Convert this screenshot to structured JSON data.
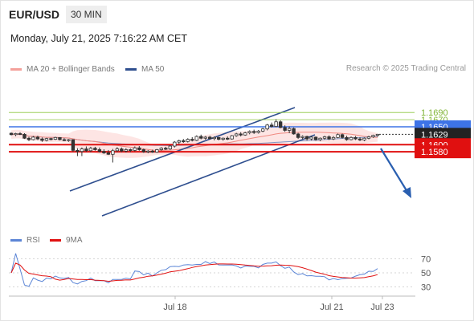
{
  "header": {
    "symbol": "EUR/USD",
    "timeframe": "30 MIN",
    "datetime": "Monday, July 21, 2025 7:16:22 AM CET"
  },
  "legend": {
    "main": [
      {
        "label": "MA 20 + Bollinger Bands",
        "color": "#f4a09a"
      },
      {
        "label": "MA 50",
        "color": "#2f4f8f"
      }
    ],
    "indicator": [
      {
        "label": "RSI",
        "color": "#5b85d6"
      },
      {
        "label": "9MA",
        "color": "#e01010"
      }
    ]
  },
  "credit": "Research © 2025 Trading Central",
  "levels": [
    {
      "value": "1.1690",
      "kind": "target-line",
      "color": "#8cc63f"
    },
    {
      "value": "1.1670",
      "kind": "target-line",
      "color": "#8cc63f"
    },
    {
      "value": "1.1650",
      "kind": "pivot-line",
      "color": "#3d73e6"
    },
    {
      "value": "1.1629",
      "kind": "last-price",
      "color": "#222222"
    },
    {
      "value": "1.1600",
      "kind": "support-line",
      "color": "#e01010"
    },
    {
      "value": "1.1580",
      "kind": "support-line",
      "color": "#e01010"
    }
  ],
  "rsi_axis": [
    "70",
    "50",
    "30"
  ],
  "x_axis": [
    "Jul 18",
    "Jul 21",
    "Jul 23"
  ],
  "chart_data": {
    "type": "candlestick",
    "price_range": [
      1.1538,
      1.1706
    ],
    "candles": [
      [
        1.1632,
        1.1634,
        1.1626,
        1.1628
      ],
      [
        1.1628,
        1.1633,
        1.1624,
        1.1631
      ],
      [
        1.1631,
        1.1635,
        1.1627,
        1.1629
      ],
      [
        1.1629,
        1.1632,
        1.1616,
        1.1618
      ],
      [
        1.1618,
        1.1622,
        1.161,
        1.1614
      ],
      [
        1.1614,
        1.1624,
        1.1612,
        1.1621
      ],
      [
        1.1621,
        1.1625,
        1.1613,
        1.1616
      ],
      [
        1.1616,
        1.162,
        1.1608,
        1.1612
      ],
      [
        1.1612,
        1.1619,
        1.1609,
        1.1617
      ],
      [
        1.1617,
        1.1619,
        1.1612,
        1.1615
      ],
      [
        1.1615,
        1.1622,
        1.1613,
        1.162
      ],
      [
        1.162,
        1.1621,
        1.1612,
        1.1614
      ],
      [
        1.1614,
        1.1618,
        1.161,
        1.1612
      ],
      [
        1.1612,
        1.1616,
        1.1608,
        1.1614
      ],
      [
        1.1614,
        1.1615,
        1.158,
        1.1584
      ],
      [
        1.1584,
        1.159,
        1.1568,
        1.1581
      ],
      [
        1.1581,
        1.1592,
        1.1568,
        1.1588
      ],
      [
        1.1588,
        1.1595,
        1.158,
        1.1583
      ],
      [
        1.1583,
        1.1594,
        1.1579,
        1.159
      ],
      [
        1.159,
        1.1594,
        1.1583,
        1.1586
      ],
      [
        1.1586,
        1.1592,
        1.1578,
        1.1581
      ],
      [
        1.1581,
        1.1587,
        1.1574,
        1.1577
      ],
      [
        1.1577,
        1.1585,
        1.1571,
        1.1573
      ],
      [
        1.1573,
        1.1588,
        1.155,
        1.1583
      ],
      [
        1.1583,
        1.1593,
        1.1579,
        1.1588
      ],
      [
        1.1588,
        1.1592,
        1.1579,
        1.1582
      ],
      [
        1.1582,
        1.159,
        1.1578,
        1.1586
      ],
      [
        1.1586,
        1.1589,
        1.1579,
        1.1584
      ],
      [
        1.1584,
        1.1595,
        1.1581,
        1.1591
      ],
      [
        1.1591,
        1.1596,
        1.1583,
        1.1586
      ],
      [
        1.1586,
        1.1589,
        1.1577,
        1.158
      ],
      [
        1.158,
        1.1585,
        1.1576,
        1.1582
      ],
      [
        1.1582,
        1.1586,
        1.1577,
        1.1579
      ],
      [
        1.1579,
        1.1588,
        1.1577,
        1.1586
      ],
      [
        1.1586,
        1.1593,
        1.1583,
        1.159
      ],
      [
        1.159,
        1.1594,
        1.1585,
        1.1588
      ],
      [
        1.1588,
        1.1599,
        1.1585,
        1.1596
      ],
      [
        1.1596,
        1.161,
        1.1592,
        1.1607
      ],
      [
        1.1607,
        1.1614,
        1.1601,
        1.1611
      ],
      [
        1.1611,
        1.1616,
        1.1605,
        1.1609
      ],
      [
        1.1609,
        1.1618,
        1.1606,
        1.1615
      ],
      [
        1.1615,
        1.1621,
        1.1609,
        1.1612
      ],
      [
        1.1612,
        1.1626,
        1.161,
        1.1623
      ],
      [
        1.1623,
        1.1628,
        1.1615,
        1.1618
      ],
      [
        1.1618,
        1.1624,
        1.1614,
        1.1621
      ],
      [
        1.1621,
        1.1625,
        1.1614,
        1.1617
      ],
      [
        1.1617,
        1.1623,
        1.1612,
        1.162
      ],
      [
        1.162,
        1.1622,
        1.1612,
        1.1615
      ],
      [
        1.1615,
        1.162,
        1.1611,
        1.1618
      ],
      [
        1.1618,
        1.1623,
        1.1613,
        1.1616
      ],
      [
        1.1616,
        1.1627,
        1.1614,
        1.1625
      ],
      [
        1.1625,
        1.1633,
        1.1622,
        1.163
      ],
      [
        1.163,
        1.1635,
        1.1623,
        1.1627
      ],
      [
        1.1627,
        1.1636,
        1.1625,
        1.1633
      ],
      [
        1.1633,
        1.164,
        1.1629,
        1.1637
      ],
      [
        1.1637,
        1.1642,
        1.163,
        1.1634
      ],
      [
        1.1634,
        1.1641,
        1.1631,
        1.1638
      ],
      [
        1.1638,
        1.1647,
        1.1635,
        1.1644
      ],
      [
        1.1644,
        1.1658,
        1.164,
        1.1655
      ],
      [
        1.1655,
        1.1662,
        1.1648,
        1.1651
      ],
      [
        1.1651,
        1.1671,
        1.1649,
        1.1664
      ],
      [
        1.1664,
        1.1668,
        1.1646,
        1.1648
      ],
      [
        1.1648,
        1.1654,
        1.1636,
        1.164
      ],
      [
        1.164,
        1.1651,
        1.1632,
        1.1645
      ],
      [
        1.1645,
        1.1648,
        1.1628,
        1.163
      ],
      [
        1.163,
        1.1633,
        1.1616,
        1.162
      ],
      [
        1.162,
        1.1626,
        1.1615,
        1.1623
      ],
      [
        1.1623,
        1.1625,
        1.1612,
        1.1616
      ],
      [
        1.1616,
        1.1624,
        1.1612,
        1.1621
      ],
      [
        1.1621,
        1.1623,
        1.1611,
        1.1614
      ],
      [
        1.1614,
        1.162,
        1.161,
        1.1618
      ],
      [
        1.1618,
        1.1625,
        1.1614,
        1.1622
      ],
      [
        1.1622,
        1.1626,
        1.1613,
        1.1616
      ],
      [
        1.1616,
        1.1624,
        1.1613,
        1.162
      ],
      [
        1.162,
        1.1631,
        1.1618,
        1.1628
      ],
      [
        1.1628,
        1.1631,
        1.1617,
        1.162
      ],
      [
        1.162,
        1.1625,
        1.1611,
        1.1614
      ],
      [
        1.1614,
        1.1623,
        1.1612,
        1.162
      ],
      [
        1.162,
        1.1624,
        1.1613,
        1.1616
      ],
      [
        1.1616,
        1.1621,
        1.161,
        1.1613
      ],
      [
        1.1613,
        1.162,
        1.161,
        1.1618
      ],
      [
        1.1618,
        1.1625,
        1.1615,
        1.1622
      ],
      [
        1.1622,
        1.1628,
        1.1619,
        1.1626
      ],
      [
        1.1626,
        1.163,
        1.1622,
        1.1629
      ]
    ]
  }
}
